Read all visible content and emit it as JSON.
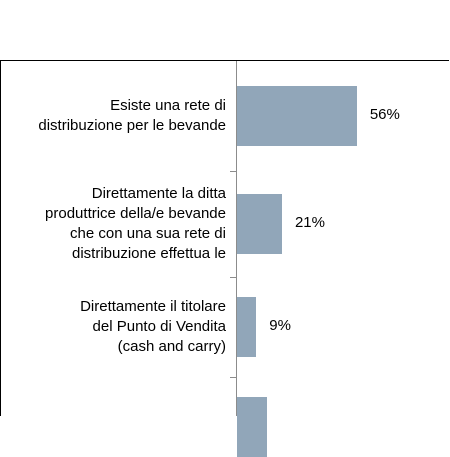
{
  "chart_data": {
    "type": "bar",
    "orientation": "horizontal",
    "categories": [
      "Esiste una rete di\ndistribuzione per le bevande",
      "Direttamente la ditta\nproduttrice della/e bevande\nche con una sua rete di\ndistribuzione effettua le",
      "Direttamente il titolare\ndel Punto di Vendita\n(cash and carry)",
      ""
    ],
    "values": [
      56,
      21,
      9,
      14
    ],
    "labels": [
      "56%",
      "21%",
      "9%",
      ""
    ],
    "unit": "%",
    "xlim": [
      0,
      100
    ],
    "grid": false,
    "bar_color": "#91a6b9"
  }
}
